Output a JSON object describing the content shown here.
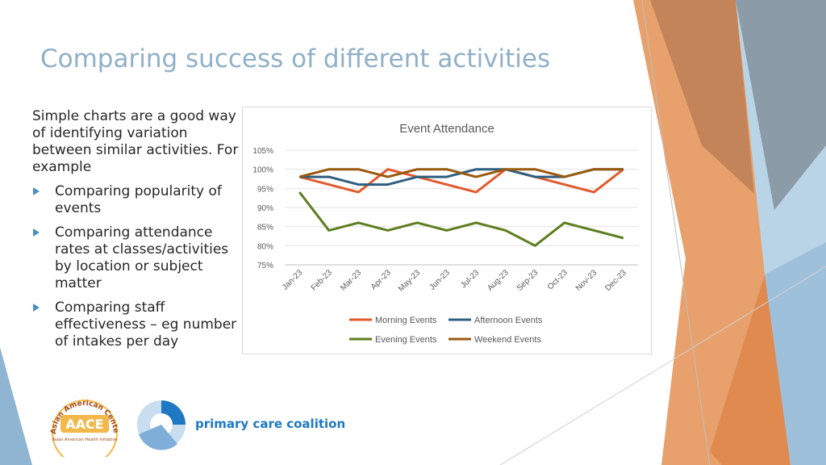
{
  "slide": {
    "title": "Comparing success of different activities",
    "intro": "Simple charts are a good way of identifying variation between similar activities. For example",
    "bullets": [
      "Comparing popularity of events",
      "Comparing attendance rates at classes/activities by location or subject matter",
      "Comparing staff effectiveness – eg number of intakes per day"
    ]
  },
  "logos": {
    "aace": {
      "ring_text": "Asian American Center of Excellence",
      "main_text": "AACE",
      "sub_text": "Asian American Health Initiative"
    },
    "pcc": {
      "name": "primary care coalition"
    }
  },
  "chart_data": {
    "type": "line",
    "title": "Event Attendance",
    "categories": [
      "Jan-23",
      "Feb-23",
      "Mar-23",
      "Apr-23",
      "May-23",
      "Jun-23",
      "Jul-23",
      "Aug-23",
      "Sep-23",
      "Oct-23",
      "Nov-23",
      "Dec-23"
    ],
    "series": [
      {
        "name": "Morning Events",
        "color": "#E15A2E",
        "values": [
          98,
          96,
          94,
          100,
          98,
          96,
          94,
          100,
          98,
          96,
          94,
          100
        ]
      },
      {
        "name": "Afternoon Events",
        "color": "#2E5E80",
        "values": [
          98,
          98,
          96,
          96,
          98,
          98,
          100,
          100,
          98,
          98,
          100,
          100
        ]
      },
      {
        "name": "Evening Events",
        "color": "#5E7D1E",
        "values": [
          94,
          84,
          86,
          84,
          86,
          84,
          86,
          84,
          80,
          86,
          84,
          82
        ]
      },
      {
        "name": "Weekend Events",
        "color": "#9A5A0E",
        "values": [
          98,
          100,
          100,
          98,
          100,
          100,
          98,
          100,
          100,
          98,
          100,
          100
        ]
      }
    ],
    "y_ticks": [
      "75%",
      "80%",
      "85%",
      "90%",
      "95%",
      "100%",
      "105%"
    ],
    "ylim": [
      75,
      105
    ],
    "grid": true,
    "legend": "bottom"
  }
}
